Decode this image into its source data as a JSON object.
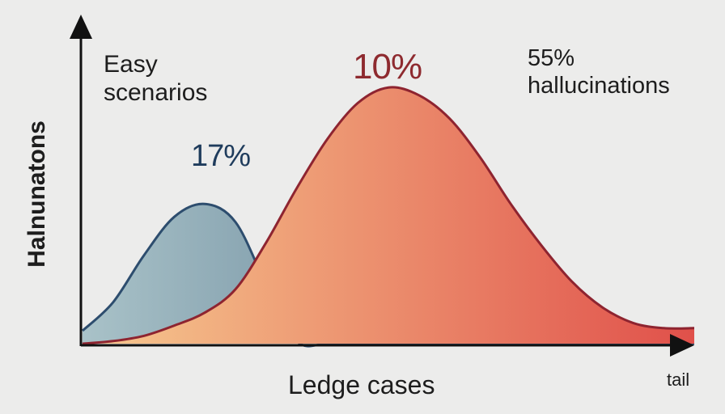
{
  "chart_data": {
    "type": "area",
    "title": "",
    "ylabel": "Halnunatons",
    "xlabel": "Ledge cases",
    "x_end_label": "tail",
    "annotations": {
      "easy": [
        "Easy",
        "scenarios"
      ],
      "easy_pct": "17%",
      "mid_pct": "10%",
      "tail_pct": "55%",
      "tail_desc": "hallucinations"
    },
    "x": [
      0,
      5,
      10,
      15,
      20,
      25,
      30,
      35,
      40,
      45,
      50,
      55,
      60,
      65,
      70,
      75,
      80,
      85,
      90,
      95,
      100
    ],
    "ylim": [
      0,
      100
    ],
    "series": [
      {
        "color": "#2d4d6e",
        "fill_from": "#a9c2c8",
        "fill_to": "#3c5f7c",
        "values": [
          5,
          16,
          34,
          49,
          54,
          47,
          23,
          1,
          0,
          0,
          0,
          0,
          0,
          0,
          0,
          0,
          0,
          0,
          0,
          0,
          0
        ]
      },
      {
        "color": "#8e2430",
        "fill_from": "#f6c98f",
        "fill_to": "#e0504a",
        "values": [
          0,
          1,
          3,
          7,
          12,
          21,
          39,
          60,
          79,
          93,
          99,
          96,
          87,
          72,
          54,
          38,
          24,
          14,
          8,
          6,
          6
        ]
      }
    ]
  }
}
